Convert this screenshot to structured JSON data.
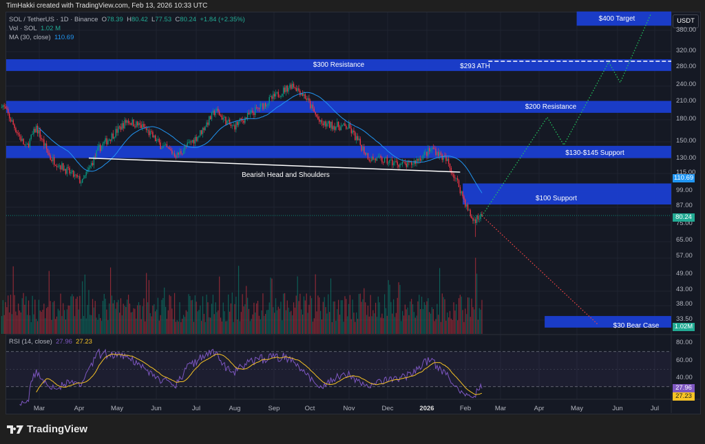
{
  "header": {
    "credit": "TimHakki created with TradingView.com, Feb 13, 2026 10:33 UTC"
  },
  "legend": {
    "symbol": "SOL / TetherUS · 1D · Binance",
    "open_label": "O",
    "open": "78.39",
    "high_label": "H",
    "high": "80.42",
    "low_label": "L",
    "low": "77.53",
    "close_label": "C",
    "close": "80.24",
    "change": "+1.84 (+2.35%)",
    "vol_label": "Vol · SOL",
    "vol": "1.02 M",
    "ma_label": "MA (30, close)",
    "ma": "110.69",
    "rsi_label": "RSI (14, close)",
    "rsi": "27.96",
    "rsi_ma": "27.23"
  },
  "currency": "USDT",
  "footer": {
    "brand": "TradingView"
  },
  "colors": {
    "up": "#089981",
    "down": "#f23645",
    "ma": "#2196f3",
    "zone": "#1b3fd6",
    "rsi": "#7e57c2",
    "rsi_ma": "#f7c325",
    "bull_path": "#22c55e",
    "bear_path": "#ef4444"
  },
  "chart_data": {
    "type": "candlestick",
    "scale": "log",
    "symbol": "SOL/USDT",
    "interval": "1D",
    "ylim": [
      31,
      450
    ],
    "y_ticks": [
      "380.00",
      "320.00",
      "280.00",
      "240.00",
      "210.00",
      "180.00",
      "150.00",
      "130.00",
      "115.00",
      "99.00",
      "87.00",
      "75.00",
      "65.00",
      "57.00",
      "49.00",
      "43.00",
      "38.00",
      "33.50"
    ],
    "x_ticks": [
      "Mar",
      "Apr",
      "May",
      "Jun",
      "Jul",
      "Aug",
      "Sep",
      "Oct",
      "Nov",
      "Dec",
      "2026",
      "Feb",
      "Mar",
      "Apr",
      "May",
      "Jun",
      "Jul"
    ],
    "price_path": [
      [
        "2025-02-03",
        206
      ],
      [
        "2025-02-22",
        141
      ],
      [
        "2025-03-02",
        168
      ],
      [
        "2025-03-13",
        130
      ],
      [
        "2025-04-07",
        106
      ],
      [
        "2025-04-20",
        141
      ],
      [
        "2025-05-12",
        178
      ],
      [
        "2025-05-25",
        168
      ],
      [
        "2025-06-07",
        145
      ],
      [
        "2025-06-20",
        133
      ],
      [
        "2025-07-07",
        158
      ],
      [
        "2025-07-20",
        194
      ],
      [
        "2025-08-02",
        168
      ],
      [
        "2025-08-28",
        206
      ],
      [
        "2025-09-18",
        242
      ],
      [
        "2025-09-28",
        218
      ],
      [
        "2025-10-10",
        173
      ],
      [
        "2025-11-01",
        168
      ],
      [
        "2025-11-17",
        130
      ],
      [
        "2025-12-18",
        122
      ],
      [
        "2026-01-06",
        141
      ],
      [
        "2026-01-17",
        126
      ],
      [
        "2026-01-26",
        103
      ],
      [
        "2026-02-02",
        84
      ],
      [
        "2026-02-06",
        77
      ],
      [
        "2026-02-13",
        80.24
      ]
    ],
    "last": {
      "close": 80.24,
      "ma30": 110.69,
      "volume": "1.02M",
      "rsi": 27.96,
      "rsi_ma": 27.23
    },
    "rsi_ticks": [
      "80.00",
      "60.00",
      "40.00"
    ],
    "rsi_levels": [
      70,
      30
    ],
    "zones": [
      {
        "label": "$400 Target",
        "from": 395,
        "to": 445,
        "start": "2026-04-28"
      },
      {
        "label": "$300 Resistance",
        "from": 270,
        "to": 298,
        "start": "2025-02-03"
      },
      {
        "label": "$200 Resistance",
        "from": 190,
        "to": 210,
        "start": "2025-02-03"
      },
      {
        "label": "$130-$145 Support",
        "from": 130,
        "to": 144,
        "start": "2025-02-03"
      },
      {
        "label": "$100 Support",
        "from": 88,
        "to": 105,
        "start": "2026-01-29"
      },
      {
        "label": "$30 Bear Case",
        "from": 31.3,
        "to": 34.5,
        "start": "2026-04-03"
      }
    ],
    "ath": {
      "label": "$293 ATH",
      "price": 293,
      "start": "2026-02-18"
    },
    "neckline": {
      "label": "Bearish Head and Shoulders",
      "points": [
        [
          "2025-04-12",
          130
        ],
        [
          "2026-01-27",
          115.5
        ]
      ]
    },
    "bull_projection": [
      [
        "2026-02-13",
        80
      ],
      [
        "2026-04-05",
        183
      ],
      [
        "2026-04-18",
        145
      ],
      [
        "2026-05-23",
        291
      ],
      [
        "2026-06-01",
        245
      ],
      [
        "2026-06-25",
        437
      ]
    ],
    "bear_projection": [
      [
        "2026-02-13",
        80
      ],
      [
        "2026-05-15",
        32
      ]
    ]
  }
}
